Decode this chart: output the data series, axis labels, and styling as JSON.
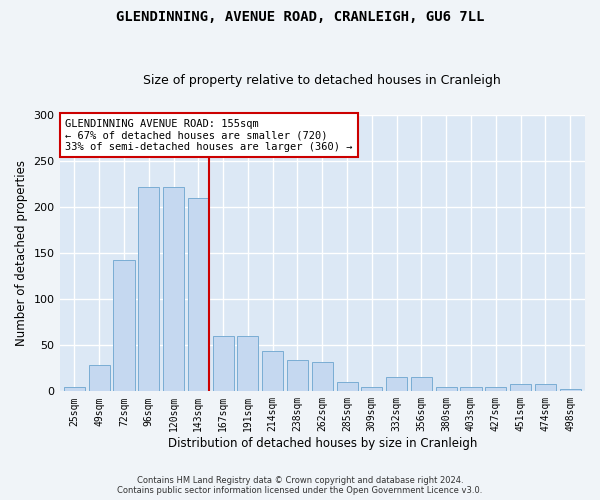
{
  "title_line1": "GLENDINNING, AVENUE ROAD, CRANLEIGH, GU6 7LL",
  "title_line2": "Size of property relative to detached houses in Cranleigh",
  "xlabel": "Distribution of detached houses by size in Cranleigh",
  "ylabel": "Number of detached properties",
  "bar_color": "#c5d8f0",
  "bar_edge_color": "#7aadd4",
  "bg_color": "#dce8f5",
  "grid_color": "#ffffff",
  "fig_bg_color": "#f0f4f8",
  "categories": [
    "25sqm",
    "49sqm",
    "72sqm",
    "96sqm",
    "120sqm",
    "143sqm",
    "167sqm",
    "191sqm",
    "214sqm",
    "238sqm",
    "262sqm",
    "285sqm",
    "309sqm",
    "332sqm",
    "356sqm",
    "380sqm",
    "403sqm",
    "427sqm",
    "451sqm",
    "474sqm",
    "498sqm"
  ],
  "values": [
    5,
    29,
    142,
    222,
    222,
    210,
    60,
    60,
    44,
    34,
    32,
    10,
    5,
    15,
    15,
    5,
    5,
    5,
    8,
    8,
    2
  ],
  "ylim": [
    0,
    300
  ],
  "yticks": [
    0,
    50,
    100,
    150,
    200,
    250,
    300
  ],
  "vline_color": "#cc0000",
  "annotation_text": "GLENDINNING AVENUE ROAD: 155sqm\n← 67% of detached houses are smaller (720)\n33% of semi-detached houses are larger (360) →",
  "annotation_box_color": "#ffffff",
  "annotation_border_color": "#cc0000",
  "footer_line1": "Contains HM Land Registry data © Crown copyright and database right 2024.",
  "footer_line2": "Contains public sector information licensed under the Open Government Licence v3.0.",
  "title_fontsize": 10,
  "subtitle_fontsize": 9,
  "tick_fontsize": 7,
  "label_fontsize": 8.5,
  "annotation_fontsize": 7.5
}
